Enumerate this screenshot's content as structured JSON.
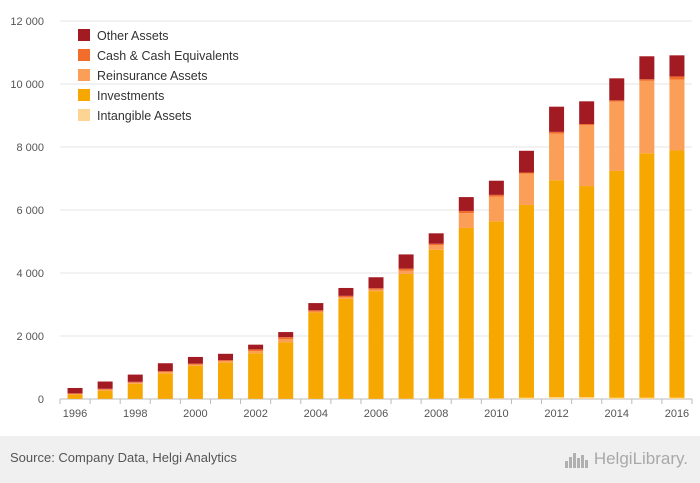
{
  "chart_data": {
    "type": "bar",
    "stacked": true,
    "categories": [
      "1996",
      "1997",
      "1998",
      "1999",
      "2000",
      "2001",
      "2002",
      "2003",
      "2004",
      "2005",
      "2006",
      "2007",
      "2008",
      "2009",
      "2010",
      "2011",
      "2012",
      "2013",
      "2014",
      "2015",
      "2016"
    ],
    "x_tick_labels": [
      "1996",
      "1998",
      "2000",
      "2002",
      "2004",
      "2006",
      "2008",
      "2010",
      "2012",
      "2014",
      "2016"
    ],
    "series": [
      {
        "name": "Intangible Assets",
        "color": "#fcd592",
        "values": [
          5,
          5,
          5,
          5,
          5,
          5,
          5,
          5,
          5,
          5,
          5,
          10,
          10,
          20,
          20,
          40,
          60,
          60,
          40,
          40,
          40
        ]
      },
      {
        "name": "Investments",
        "color": "#f7a800",
        "values": [
          135,
          260,
          480,
          810,
          1050,
          1150,
          1450,
          1800,
          2740,
          3180,
          3420,
          3960,
          4730,
          5410,
          5620,
          6120,
          6880,
          6700,
          7200,
          7760,
          7850
        ]
      },
      {
        "name": "Reinsurance Assets",
        "color": "#fb9e57",
        "values": [
          20,
          30,
          30,
          40,
          40,
          50,
          70,
          100,
          30,
          40,
          50,
          110,
          140,
          470,
          780,
          1000,
          1480,
          1930,
          2200,
          2300,
          2250
        ]
      },
      {
        "name": "Cash & Cash Equivalents",
        "color": "#f26d2b",
        "values": [
          20,
          30,
          30,
          30,
          30,
          30,
          50,
          60,
          40,
          50,
          40,
          60,
          50,
          70,
          60,
          30,
          60,
          40,
          40,
          50,
          100
        ]
      },
      {
        "name": "Other Assets",
        "color": "#a31b22",
        "values": [
          170,
          230,
          230,
          250,
          210,
          200,
          150,
          160,
          230,
          250,
          350,
          450,
          330,
          440,
          450,
          690,
          800,
          720,
          700,
          730,
          670
        ]
      }
    ],
    "ylim": [
      0,
      12000
    ],
    "yticks": [
      0,
      2000,
      4000,
      6000,
      8000,
      10000,
      12000
    ],
    "ytick_labels": [
      "0",
      "2 000",
      "4 000",
      "6 000",
      "8 000",
      "10 000",
      "12 000"
    ],
    "grid": "horizontal",
    "legend_position": "top-left",
    "legend_order": [
      "Other Assets",
      "Cash & Cash Equivalents",
      "Reinsurance Assets",
      "Investments",
      "Intangible Assets"
    ]
  },
  "footer": {
    "source": "Source: Company Data, Helgi Analytics",
    "brand": "HelgiLibrary."
  }
}
